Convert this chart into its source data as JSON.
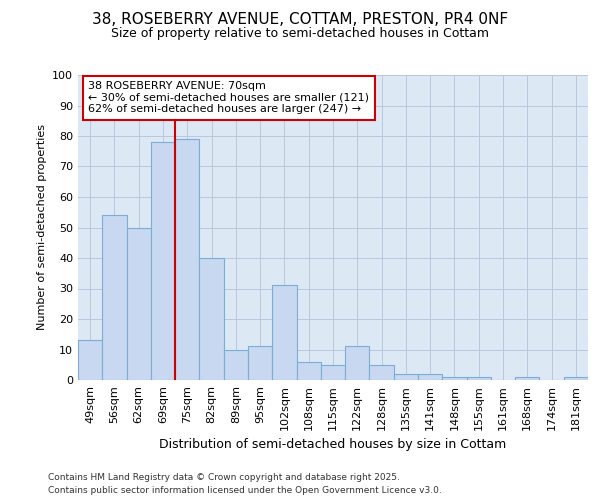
{
  "title_line1": "38, ROSEBERRY AVENUE, COTTAM, PRESTON, PR4 0NF",
  "title_line2": "Size of property relative to semi-detached houses in Cottam",
  "xlabel": "Distribution of semi-detached houses by size in Cottam",
  "ylabel": "Number of semi-detached properties",
  "categories": [
    "49sqm",
    "56sqm",
    "62sqm",
    "69sqm",
    "75sqm",
    "82sqm",
    "89sqm",
    "95sqm",
    "102sqm",
    "108sqm",
    "115sqm",
    "122sqm",
    "128sqm",
    "135sqm",
    "141sqm",
    "148sqm",
    "155sqm",
    "161sqm",
    "168sqm",
    "174sqm",
    "181sqm"
  ],
  "values": [
    13,
    54,
    50,
    78,
    79,
    40,
    10,
    11,
    31,
    6,
    5,
    11,
    5,
    2,
    2,
    1,
    1,
    0,
    1,
    0,
    1
  ],
  "bar_color": "#c8d8f0",
  "bar_edge_color": "#7aaed6",
  "grid_color": "#b8c8dc",
  "background_color": "#dde8f5",
  "red_line_x": 3.5,
  "annotation_title": "38 ROSEBERRY AVENUE: 70sqm",
  "annotation_line1": "← 30% of semi-detached houses are smaller (121)",
  "annotation_line2": "62% of semi-detached houses are larger (247) →",
  "annotation_box_color": "#ffffff",
  "annotation_box_edge": "#cc0000",
  "red_line_color": "#cc0000",
  "footer_line1": "Contains HM Land Registry data © Crown copyright and database right 2025.",
  "footer_line2": "Contains public sector information licensed under the Open Government Licence v3.0.",
  "ylim": [
    0,
    100
  ],
  "yticks": [
    0,
    10,
    20,
    30,
    40,
    50,
    60,
    70,
    80,
    90,
    100
  ],
  "title1_fontsize": 11,
  "title2_fontsize": 9,
  "xlabel_fontsize": 9,
  "ylabel_fontsize": 8,
  "tick_fontsize": 8,
  "annot_fontsize": 8,
  "footer_fontsize": 6.5
}
